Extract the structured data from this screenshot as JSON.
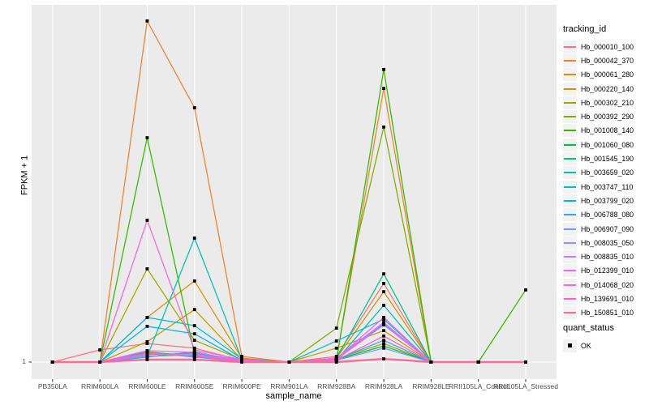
{
  "figure": {
    "background": "#FFFFFF",
    "panel_background": "#EBEBEB",
    "grid_color": "#FFFFFF",
    "tick_color": "#333333",
    "tick_label_color": "#4D4D4D",
    "point_color": "#000000"
  },
  "axes": {
    "x": {
      "title": "sample_name",
      "tick_labels": [
        "PB350LA",
        "RRIM600LA",
        "RRIM600LE",
        "RRIM600SE",
        "RRIM600PE",
        "RRIM901LA",
        "RRIM928BA",
        "RRIM928LA",
        "RRIM928LE",
        "RRII105LA_Control",
        "RRII105LA_Stressed"
      ]
    },
    "y": {
      "title": "FPKM + 1",
      "tick_labels": [
        "1"
      ],
      "note": "log-style axis; only the value 1 is labeled, at the baseline"
    }
  },
  "legends": {
    "tracking_id": {
      "title": "tracking_id"
    },
    "quant_status": {
      "title": "quant_status",
      "items": [
        {
          "label": "OK",
          "marker": "filled-black-square"
        }
      ]
    }
  },
  "chart_data": {
    "type": "line",
    "title": "",
    "xlabel": "sample_name",
    "ylabel": "FPKM + 1",
    "legend_position": "right",
    "grid": "white gridlines on gray panel; vertical line per category, horizontal line at y=1",
    "marker": "black square (quant_status = OK) at every data point",
    "y_axis": {
      "baseline_value": 1,
      "scale": "log-like, only '1' labeled"
    },
    "values_unit": "relative height above the FPKM+1=1 baseline, in % of panel height (0 = FPKM+1 of 1)",
    "categories": [
      "PB350LA",
      "RRIM600LA",
      "RRIM600LE",
      "RRIM600SE",
      "RRIM600PE",
      "RRIM901LA",
      "RRIM928BA",
      "RRIM928LA",
      "RRIM928LE",
      "RRII105LA_Control",
      "RRII105LA_Stressed"
    ],
    "series": [
      {
        "name": "Hb_000010_100",
        "color": "#F8766D",
        "values": [
          0,
          3.4,
          5.2,
          3.9,
          0.5,
          0,
          1.6,
          22.0,
          0,
          0,
          0
        ]
      },
      {
        "name": "Hb_000042_370",
        "color": "#EA8331",
        "values": [
          0,
          0,
          95.5,
          71.2,
          1.6,
          0,
          0.9,
          76.6,
          0,
          0,
          0
        ]
      },
      {
        "name": "Hb_000061_280",
        "color": "#D89000",
        "values": [
          0,
          0,
          12.5,
          22.7,
          1.1,
          0,
          1.1,
          19.7,
          0,
          0,
          0
        ]
      },
      {
        "name": "Hb_000220_140",
        "color": "#C09B00",
        "values": [
          0,
          0,
          5.7,
          14.7,
          0.7,
          0,
          3.9,
          8.8,
          0,
          0,
          0
        ]
      },
      {
        "name": "Hb_000302_210",
        "color": "#A3A500",
        "values": [
          0,
          0,
          26.1,
          6.1,
          0.7,
          0,
          0.9,
          5.2,
          0,
          0,
          0
        ]
      },
      {
        "name": "Hb_000392_290",
        "color": "#7CAE00",
        "values": [
          0,
          0,
          2.9,
          1.6,
          0.2,
          0,
          9.5,
          65.8,
          0,
          0,
          0
        ]
      },
      {
        "name": "Hb_001008_140",
        "color": "#39B600",
        "values": [
          0,
          0,
          62.8,
          2.3,
          0.7,
          0,
          0.5,
          81.9,
          0,
          0,
          20.2
        ]
      },
      {
        "name": "Hb_001060_080",
        "color": "#00BB4E",
        "values": [
          0,
          0,
          2.0,
          2.5,
          0.2,
          0,
          0.7,
          4.5,
          0,
          0,
          0
        ]
      },
      {
        "name": "Hb_001545_190",
        "color": "#00C087",
        "values": [
          0,
          0,
          1.4,
          2.9,
          0.2,
          0,
          1.1,
          24.7,
          0,
          0,
          0
        ]
      },
      {
        "name": "Hb_003659_020",
        "color": "#00C0B2",
        "values": [
          0,
          0,
          1.6,
          34.7,
          0.7,
          0,
          0.5,
          15.9,
          0,
          0,
          0
        ]
      },
      {
        "name": "Hb_003747_110",
        "color": "#00BCD8",
        "values": [
          0,
          0,
          12.5,
          10.2,
          0.9,
          0,
          5.9,
          12.0,
          0,
          0,
          0
        ]
      },
      {
        "name": "Hb_003799_020",
        "color": "#00B5EE",
        "values": [
          0,
          0,
          10.0,
          7.9,
          0.5,
          0,
          0.9,
          10.7,
          0,
          0,
          0
        ]
      },
      {
        "name": "Hb_006788_080",
        "color": "#35A2FF",
        "values": [
          0,
          0,
          2.7,
          1.4,
          0.2,
          0,
          0.7,
          6.1,
          0,
          0,
          0
        ]
      },
      {
        "name": "Hb_006907_090",
        "color": "#6E99FF",
        "values": [
          0,
          0,
          1.6,
          2.0,
          0.2,
          0,
          0.5,
          3.9,
          0,
          0,
          0
        ]
      },
      {
        "name": "Hb_008035_050",
        "color": "#9590FF",
        "values": [
          0,
          0,
          2.3,
          1.8,
          0.5,
          0,
          0.9,
          10.9,
          0,
          0,
          0
        ]
      },
      {
        "name": "Hb_008835_010",
        "color": "#C77CFF",
        "values": [
          0,
          0,
          2.0,
          2.3,
          0.2,
          0,
          0.7,
          10.4,
          0,
          0,
          0
        ]
      },
      {
        "name": "Hb_012399_010",
        "color": "#E76BF3",
        "values": [
          0,
          0,
          3.2,
          2.7,
          0.5,
          0,
          1.1,
          11.1,
          0,
          0,
          0
        ]
      },
      {
        "name": "Hb_014068_020",
        "color": "#F763E0",
        "values": [
          0,
          0,
          39.7,
          3.4,
          0.7,
          0,
          0.9,
          12.5,
          0,
          0,
          0
        ]
      },
      {
        "name": "Hb_139691_010",
        "color": "#FF62BC",
        "values": [
          0,
          0,
          2.5,
          1.6,
          0.2,
          0,
          0.5,
          7.3,
          0,
          0,
          0
        ]
      },
      {
        "name": "Hb_150851_010",
        "color": "#FF6B94",
        "values": [
          0,
          0,
          0.7,
          0.7,
          0,
          0,
          0,
          0.9,
          0,
          0,
          0
        ]
      }
    ]
  }
}
